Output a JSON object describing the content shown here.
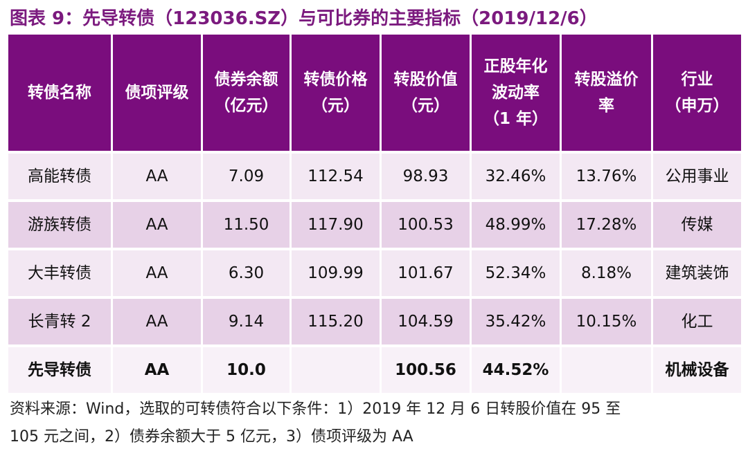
{
  "header": {
    "title": "图表 9：先导转债（123036.SZ）与可比券的主要指标（2019/12/6）"
  },
  "table": {
    "columns": [
      [
        "转债名称"
      ],
      [
        "债项评级"
      ],
      [
        "债券余额",
        "（亿元）"
      ],
      [
        "转债价格",
        "（元）"
      ],
      [
        "转股价值",
        "（元）"
      ],
      [
        "正股年化",
        "波动率",
        "（1 年）"
      ],
      [
        "转股溢价",
        "率"
      ],
      [
        "行业",
        "（申万）"
      ]
    ],
    "rows": [
      [
        "高能转债",
        "AA",
        "7.09",
        "112.54",
        "98.93",
        "32.46%",
        "13.76%",
        "公用事业"
      ],
      [
        "游族转债",
        "AA",
        "11.50",
        "117.90",
        "100.53",
        "48.99%",
        "17.28%",
        "传媒"
      ],
      [
        "大丰转债",
        "AA",
        "6.30",
        "109.99",
        "101.67",
        "52.34%",
        "8.18%",
        "建筑装饰"
      ],
      [
        "长青转 2",
        "AA",
        "9.14",
        "115.20",
        "104.59",
        "35.42%",
        "10.15%",
        "化工"
      ],
      [
        "先导转债",
        "AA",
        "10.0",
        null,
        "100.56",
        "44.52%",
        null,
        "机械设备"
      ]
    ]
  },
  "footnote": [
    "资料来源：Wind，选取的可转债符合以下条件：1）2019 年 12 月 6 日转股价值在 95 至",
    "105 元之间，2）债券余额大于 5 亿元，3）债项评级为 AA"
  ]
}
